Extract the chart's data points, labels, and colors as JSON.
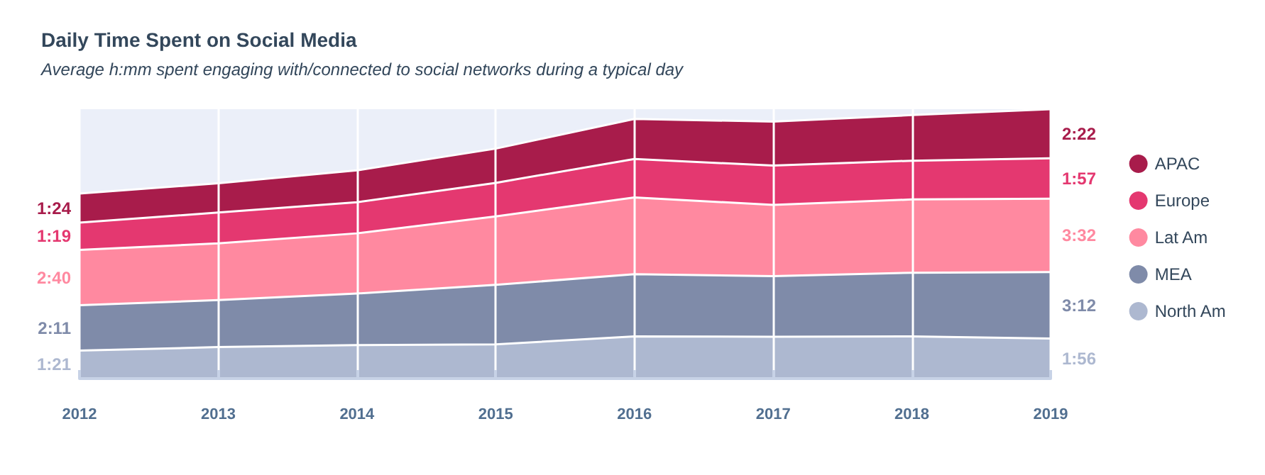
{
  "chart_data": {
    "type": "area",
    "title": "Daily Time Spent on Social Media",
    "subtitle": "Average h:mm spent engaging with/connected to social networks during a typical day",
    "stacked": true,
    "categories": [
      "2012",
      "2013",
      "2014",
      "2015",
      "2016",
      "2017",
      "2018",
      "2019"
    ],
    "series": [
      {
        "name": "North Am",
        "color": "#adb8d0",
        "values": [
          81,
          91,
          97,
          99,
          122,
          121,
          122,
          116
        ],
        "value_labels": [
          "1:21",
          null,
          null,
          null,
          null,
          null,
          null,
          "1:56"
        ]
      },
      {
        "name": "MEA",
        "color": "#7f8ba9",
        "values": [
          131,
          136,
          149,
          172,
          180,
          175,
          184,
          192
        ],
        "value_labels": [
          "2:11",
          null,
          null,
          null,
          null,
          null,
          null,
          "3:12"
        ]
      },
      {
        "name": "Lat Am",
        "color": "#ff89a0",
        "values": [
          160,
          164,
          174,
          198,
          222,
          206,
          212,
          212
        ],
        "value_labels": [
          "2:40",
          null,
          null,
          null,
          null,
          null,
          null,
          "3:32"
        ]
      },
      {
        "name": "Europe",
        "color": "#e43870",
        "values": [
          79,
          89,
          90,
          97,
          111,
          114,
          112,
          117
        ],
        "value_labels": [
          "1:19",
          null,
          null,
          null,
          null,
          null,
          null,
          "1:57"
        ]
      },
      {
        "name": "APAC",
        "color": "#a81c4b",
        "values": [
          84,
          85,
          92,
          99,
          116,
          127,
          132,
          142
        ],
        "value_labels": [
          "1:24",
          null,
          null,
          null,
          null,
          null,
          null,
          "2:22"
        ]
      }
    ],
    "grid": "x",
    "legend": "right",
    "marker": "none"
  }
}
